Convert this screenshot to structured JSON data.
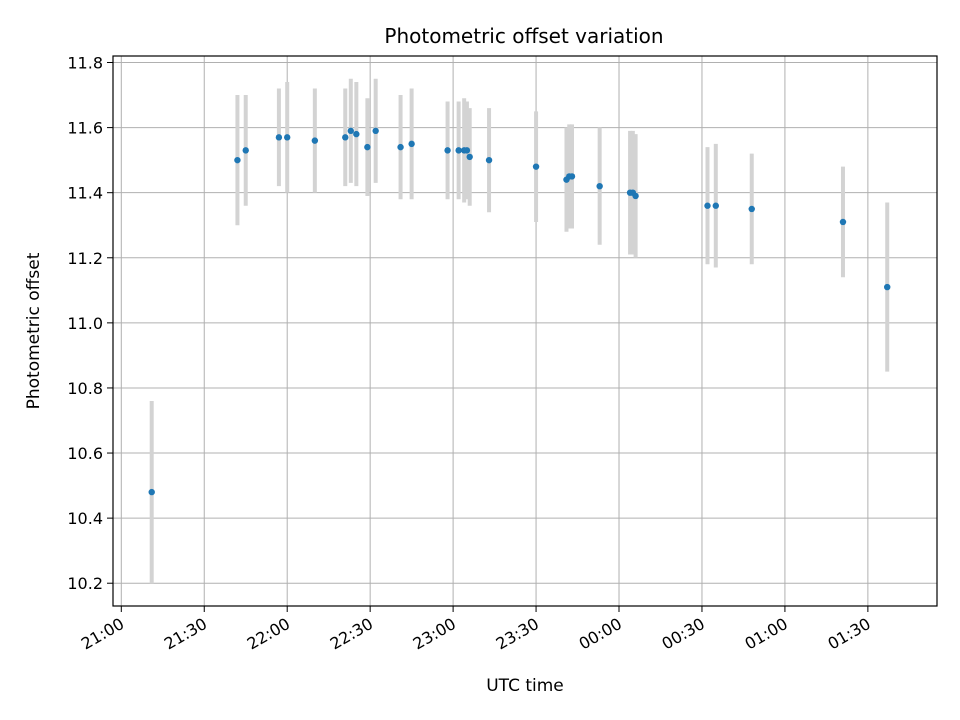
{
  "chart_data": {
    "type": "scatter",
    "title": "Photometric offset variation",
    "xlabel": "UTC time",
    "ylabel": "Photometric offset",
    "ylim": [
      10.13,
      11.82
    ],
    "xlim": [
      "20:57",
      "01:55"
    ],
    "grid": true,
    "x_ticks": [
      "21:00",
      "21:30",
      "22:00",
      "22:30",
      "23:00",
      "23:30",
      "00:00",
      "00:30",
      "01:00",
      "01:30"
    ],
    "y_ticks": [
      "10.2",
      "10.4",
      "10.6",
      "10.8",
      "11.0",
      "11.2",
      "11.4",
      "11.6",
      "11.8"
    ],
    "colors": {
      "points": "#1f77b4",
      "errorbars": "#d3d3d3",
      "grid": "#b0b0b0"
    },
    "series": [
      {
        "points": [
          {
            "t": "21:11",
            "y": 10.48,
            "err": 0.28
          },
          {
            "t": "21:42",
            "y": 11.5,
            "err": 0.2
          },
          {
            "t": "21:45",
            "y": 11.53,
            "err": 0.17
          },
          {
            "t": "21:57",
            "y": 11.57,
            "err": 0.15
          },
          {
            "t": "22:00",
            "y": 11.57,
            "err": 0.17
          },
          {
            "t": "22:10",
            "y": 11.56,
            "err": 0.16
          },
          {
            "t": "22:21",
            "y": 11.57,
            "err": 0.15
          },
          {
            "t": "22:23",
            "y": 11.59,
            "err": 0.16
          },
          {
            "t": "22:25",
            "y": 11.58,
            "err": 0.16
          },
          {
            "t": "22:29",
            "y": 11.54,
            "err": 0.15
          },
          {
            "t": "22:32",
            "y": 11.59,
            "err": 0.16
          },
          {
            "t": "22:41",
            "y": 11.54,
            "err": 0.16
          },
          {
            "t": "22:45",
            "y": 11.55,
            "err": 0.17
          },
          {
            "t": "22:58",
            "y": 11.53,
            "err": 0.15
          },
          {
            "t": "23:02",
            "y": 11.53,
            "err": 0.15
          },
          {
            "t": "23:04",
            "y": 11.53,
            "err": 0.16
          },
          {
            "t": "23:05",
            "y": 11.53,
            "err": 0.15
          },
          {
            "t": "23:06",
            "y": 11.51,
            "err": 0.15
          },
          {
            "t": "23:13",
            "y": 11.5,
            "err": 0.16
          },
          {
            "t": "23:30",
            "y": 11.48,
            "err": 0.17
          },
          {
            "t": "23:41",
            "y": 11.44,
            "err": 0.16
          },
          {
            "t": "23:42",
            "y": 11.45,
            "err": 0.16
          },
          {
            "t": "23:43",
            "y": 11.45,
            "err": 0.16
          },
          {
            "t": "23:53",
            "y": 11.42,
            "err": 0.18
          },
          {
            "t": "00:04",
            "y": 11.4,
            "err": 0.19
          },
          {
            "t": "00:05",
            "y": 11.4,
            "err": 0.19
          },
          {
            "t": "00:06",
            "y": 11.39,
            "err": 0.19
          },
          {
            "t": "00:32",
            "y": 11.36,
            "err": 0.18
          },
          {
            "t": "00:35",
            "y": 11.36,
            "err": 0.19
          },
          {
            "t": "00:48",
            "y": 11.35,
            "err": 0.17
          },
          {
            "t": "01:21",
            "y": 11.31,
            "err": 0.17
          },
          {
            "t": "01:37",
            "y": 11.11,
            "err": 0.26
          }
        ]
      }
    ]
  }
}
